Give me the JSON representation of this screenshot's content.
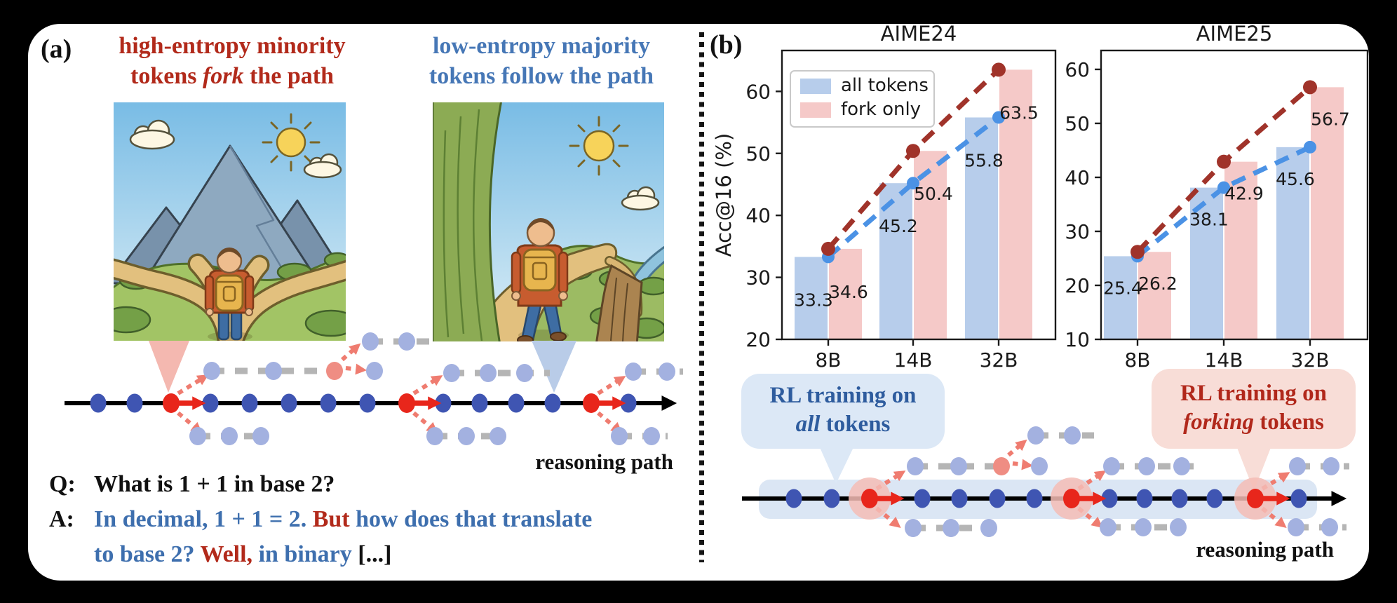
{
  "panel_a": {
    "label": "(a)",
    "heading_red": {
      "line1": "high-entropy minority",
      "line2_pre": "tokens ",
      "line2_italic": "fork",
      "line2_post": " the path"
    },
    "heading_blue": {
      "line1": "low-entropy majority",
      "line2": "tokens follow the path"
    },
    "left_illustration": "hiker at forking paths",
    "right_illustration": "hiker following single path",
    "reasoning_path_label": "reasoning path",
    "qa": {
      "q_label": "Q:",
      "question": "What is 1 + 1 in base 2?",
      "a_label": "A:",
      "answer_line1": [
        {
          "text": "In decimal, 1 + 1 = 2. ",
          "color": "blue"
        },
        {
          "text": "But",
          "color": "red"
        },
        {
          "text": " how does that translate",
          "color": "blue"
        }
      ],
      "answer_line2": [
        {
          "text": "to base 2? ",
          "color": "blue"
        },
        {
          "text": "Well,",
          "color": "red"
        },
        {
          "text": " in binary ",
          "color": "blue"
        },
        {
          "text": "[...]",
          "color": "black"
        }
      ]
    }
  },
  "panel_b": {
    "label": "(b)",
    "callouts": {
      "all_tokens": {
        "line1": "RL training on",
        "italic": "all",
        "rest": " tokens"
      },
      "forking_tokens": {
        "line1": "RL training on",
        "italic": "forking",
        "rest": " tokens"
      }
    },
    "reasoning_path_label": "reasoning path"
  },
  "chart_data": [
    {
      "type": "bar+line",
      "title": "AIME24",
      "ylabel": "Acc@16 (%)",
      "categories": [
        "8B",
        "14B",
        "32B"
      ],
      "series": [
        {
          "name": "all tokens",
          "values": [
            33.3,
            45.2,
            55.8
          ],
          "bar_color": "#b7cdeb",
          "line_color": "#4b92e5"
        },
        {
          "name": "fork only",
          "values": [
            34.6,
            50.4,
            63.5
          ],
          "bar_color": "#f5c9c8",
          "line_color": "#a0332a"
        }
      ],
      "ylim": [
        20,
        66.6
      ],
      "yticks": [
        20,
        30,
        40,
        50,
        60
      ],
      "legend": true,
      "grid": false,
      "legend_position": "upper left",
      "label_dy": 70
    },
    {
      "type": "bar+line",
      "title": "AIME25",
      "ylabel": "",
      "categories": [
        "8B",
        "14B",
        "32B"
      ],
      "series": [
        {
          "name": "all tokens",
          "values": [
            25.4,
            38.1,
            45.6
          ],
          "bar_color": "#b7cdeb",
          "line_color": "#4b92e5"
        },
        {
          "name": "fork only",
          "values": [
            26.2,
            42.9,
            56.7
          ],
          "bar_color": "#f5c9c8",
          "line_color": "#a0332a"
        }
      ],
      "ylim": [
        10,
        63.5
      ],
      "yticks": [
        10,
        20,
        30,
        40,
        50,
        60
      ],
      "legend": false,
      "grid": false,
      "label_dy": 54
    }
  ],
  "colors": {
    "heading_red": "#b22a1b",
    "heading_blue": "#4677b6",
    "qa_blue": "#3e6fae",
    "qa_red": "#b22a1b",
    "callout_blue_bg": "#dce8f6",
    "callout_blue_text": "#2e5c9e",
    "callout_pink_bg": "#f8ddd7",
    "callout_pink_text": "#b1281b",
    "token_blue": "#3f55b2",
    "token_light_blue": "#a3b1e0",
    "token_red": "#e8261b",
    "token_faded_red": "#ef8d83",
    "branch_gray": "#b5b5b5",
    "fork_arrow_salmon": "#ef7c70",
    "halo_pink": "#f4bcb5",
    "band_blue": "#dbe6f4"
  }
}
